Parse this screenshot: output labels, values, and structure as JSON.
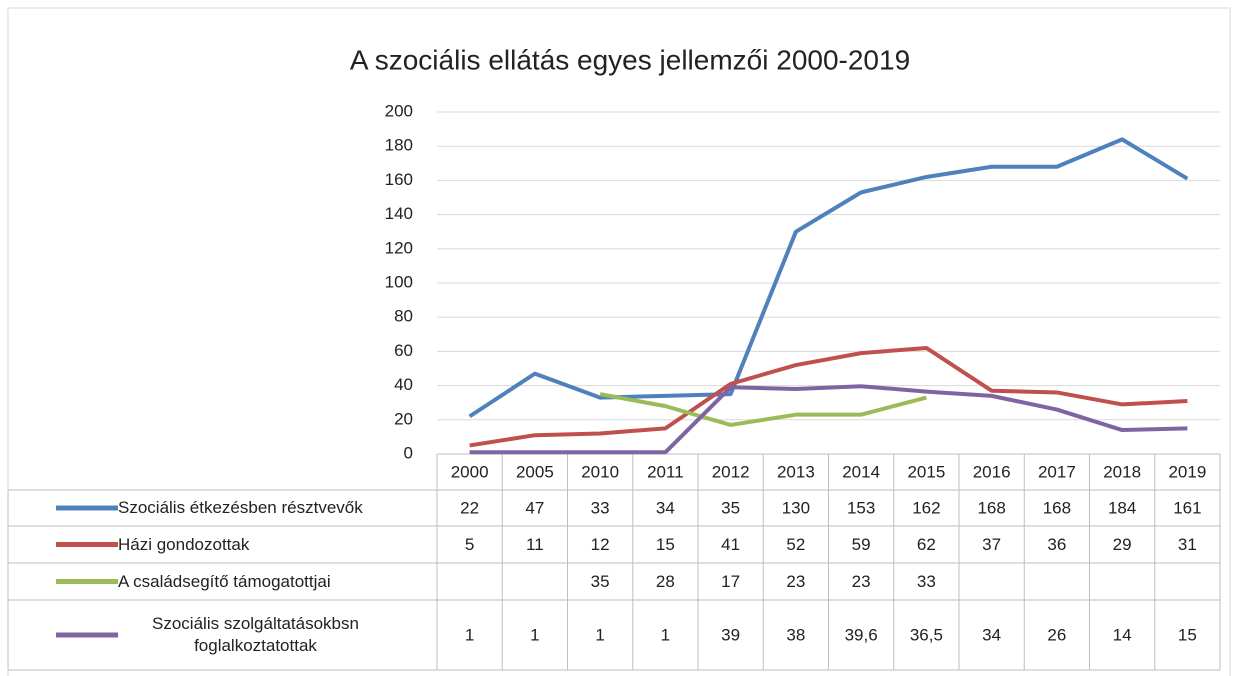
{
  "chart_data": {
    "type": "line",
    "title": "A szociális ellátás egyes jellemzői 2000-2019",
    "categories": [
      "2000",
      "2005",
      "2010",
      "2011",
      "2012",
      "2013",
      "2014",
      "2015",
      "2016",
      "2017",
      "2018",
      "2019"
    ],
    "series": [
      {
        "name": "Szociális étkezésben résztvevők",
        "color": "#4f81bd",
        "values": [
          22,
          47,
          33,
          34,
          35,
          130,
          153,
          162,
          168,
          168,
          184,
          161
        ]
      },
      {
        "name": "Házi gondozottak",
        "color": "#c0504d",
        "values": [
          5,
          11,
          12,
          15,
          41,
          52,
          59,
          62,
          37,
          36,
          29,
          31
        ]
      },
      {
        "name": "A családsegítő támogatottjai",
        "color": "#9bbb59",
        "values": [
          null,
          null,
          35,
          28,
          17,
          23,
          23,
          33,
          null,
          null,
          null,
          null
        ]
      },
      {
        "name": "Szociális szolgáltatásokbsn foglalkoztatottak",
        "color": "#8064a2",
        "values": [
          1,
          1,
          1,
          1,
          39,
          38,
          39.6,
          36.5,
          34,
          26,
          14,
          15
        ],
        "value_labels": [
          "1",
          "1",
          "1",
          "1",
          "39",
          "38",
          "39,6",
          "36,5",
          "34",
          "26",
          "14",
          "15"
        ]
      }
    ],
    "ylim": [
      0,
      200
    ],
    "yticks": [
      0,
      20,
      40,
      60,
      80,
      100,
      120,
      140,
      160,
      180,
      200
    ],
    "grid": true,
    "data_table": true
  }
}
